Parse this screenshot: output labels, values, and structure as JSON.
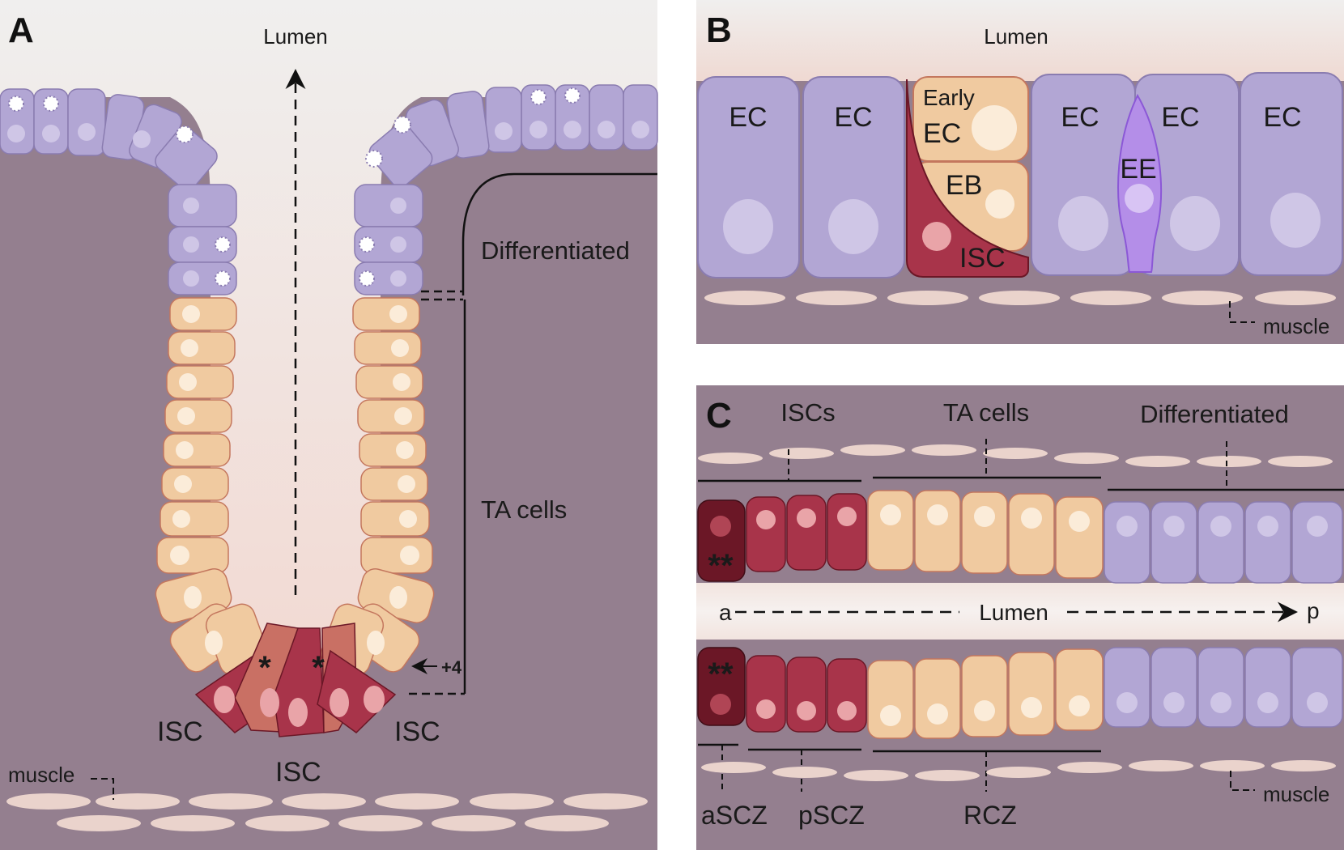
{
  "panel_a": {
    "letter": "A",
    "lumen": "Lumen",
    "differentiated": "Differentiated",
    "ta_cells": "TA cells",
    "plus4": "+4",
    "isc_left": "ISC",
    "isc_center": "ISC",
    "isc_right": "ISC",
    "muscle": "muscle",
    "star_left": "*",
    "star_right": "*"
  },
  "panel_b": {
    "letter": "B",
    "lumen": "Lumen",
    "ec_1": "EC",
    "ec_2": "EC",
    "early": "Early",
    "early_ec": "EC",
    "eb": "EB",
    "isc": "ISC",
    "ec_3": "EC",
    "ee": "EE",
    "ec_4": "EC",
    "ec_5": "EC",
    "muscle": "muscle"
  },
  "panel_c": {
    "letter": "C",
    "iscs": "ISCs",
    "ta_cells": "TA cells",
    "differentiated": "Differentiated",
    "a": "a",
    "lumen": "Lumen",
    "p": "p",
    "stars_top": "**",
    "stars_bottom": "**",
    "ascz": "aSCZ",
    "pscz": "pSCZ",
    "rcz": "RCZ",
    "muscle": "muscle"
  },
  "colors": {
    "tissue": "#947f8f",
    "lumen_top": "#efeeed",
    "lumen_bottom": "#f2dcd4",
    "differentiated_cell": "#b2a6d4",
    "ta_cell": "#f0caa0",
    "isc_cell": "#a8344a",
    "dark_isc_cell": "#6b1726",
    "ee_cell": "#b48ee8",
    "muscle_cell": "#ead3cc"
  }
}
